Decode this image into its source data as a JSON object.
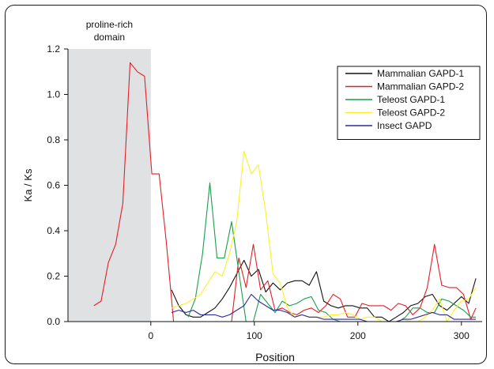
{
  "chart_data": {
    "type": "line",
    "title": "",
    "xlabel": "Position",
    "ylabel": "Ka / Ks",
    "xlim": [
      -80,
      320
    ],
    "ylim": [
      0,
      1.2
    ],
    "xticks": [
      0,
      100,
      200,
      300
    ],
    "yticks": [
      0.0,
      0.2,
      0.4,
      0.6,
      0.8,
      1.0,
      1.2
    ],
    "ytick_labels": [
      "0.0",
      "0.2",
      "0.4",
      "0.6",
      "0.8",
      "1.0",
      "1.2"
    ],
    "grid": false,
    "legend_position": "top-right",
    "annotations": [
      {
        "text": "proline-rich domain",
        "lines": [
          "proline-rich",
          "domain"
        ],
        "x_range": [
          -80,
          0
        ],
        "shade_color": "#e0e1e3"
      }
    ],
    "series": [
      {
        "name": "Mammalian GAPD-1",
        "color": "#111111",
        "x": [
          20,
          27,
          34,
          41,
          48,
          55,
          62,
          69,
          76,
          83,
          90,
          97,
          104,
          111,
          118,
          125,
          132,
          139,
          146,
          153,
          160,
          167,
          174,
          181,
          188,
          195,
          202,
          209,
          216,
          223,
          230,
          237,
          244,
          251,
          258,
          265,
          272,
          279,
          286,
          293,
          300,
          307,
          314
        ],
        "y": [
          0.14,
          0.07,
          0.03,
          0.02,
          0.02,
          0.04,
          0.06,
          0.1,
          0.15,
          0.21,
          0.27,
          0.2,
          0.23,
          0.13,
          0.17,
          0.14,
          0.17,
          0.18,
          0.18,
          0.16,
          0.22,
          0.09,
          0.07,
          0.06,
          0.07,
          0.07,
          0.06,
          0.06,
          0.02,
          0.02,
          0.0,
          0.02,
          0.04,
          0.07,
          0.08,
          0.11,
          0.12,
          0.07,
          0.05,
          0.08,
          0.11,
          0.08,
          0.19
        ]
      },
      {
        "name": "Mammalian GAPD-2",
        "color": "#e41e26",
        "x": [
          -55,
          -48,
          -41,
          -34,
          -27,
          -20,
          -13,
          -6,
          1,
          8,
          15,
          22,
          29,
          36,
          43,
          50,
          57,
          64,
          71,
          78,
          85,
          92,
          99,
          106,
          113,
          120,
          127,
          134,
          141,
          148,
          155,
          162,
          169,
          176,
          183,
          190,
          197,
          204,
          211,
          218,
          225,
          232,
          239,
          246,
          253,
          260,
          267,
          274,
          281,
          288,
          295,
          302,
          309,
          314
        ],
        "y": [
          0.07,
          0.09,
          0.26,
          0.34,
          0.52,
          1.14,
          1.1,
          1.08,
          0.65,
          0.65,
          0.35,
          0.0,
          0.0,
          0.0,
          0.0,
          0.0,
          0.0,
          0.0,
          0.0,
          0.0,
          0.28,
          0.15,
          0.34,
          0.14,
          0.18,
          0.05,
          0.06,
          0.04,
          0.03,
          0.05,
          0.06,
          0.04,
          0.07,
          0.12,
          0.1,
          0.02,
          0.02,
          0.08,
          0.07,
          0.07,
          0.07,
          0.05,
          0.08,
          0.07,
          0.03,
          0.06,
          0.15,
          0.34,
          0.16,
          0.15,
          0.15,
          0.12,
          0.01,
          0.06
        ]
      },
      {
        "name": "Teleost GAPD-1",
        "color": "#1a9e4b",
        "x": [
          36,
          43,
          50,
          57,
          64,
          71,
          78,
          85,
          92,
          99,
          106,
          113,
          120,
          127,
          134,
          141,
          148,
          155,
          162,
          169,
          176,
          183,
          190,
          197,
          204,
          211,
          218,
          225,
          232,
          239,
          246,
          253,
          260,
          267,
          274,
          281,
          288,
          295,
          302,
          309,
          314
        ],
        "y": [
          0.02,
          0.1,
          0.3,
          0.61,
          0.28,
          0.28,
          0.44,
          0.22,
          0.0,
          0.0,
          0.12,
          0.08,
          0.04,
          0.09,
          0.07,
          0.08,
          0.1,
          0.11,
          0.05,
          0.04,
          0.01,
          0.0,
          0.0,
          0.0,
          0.0,
          0.0,
          0.0,
          0.0,
          0.0,
          0.0,
          0.02,
          0.06,
          0.06,
          0.04,
          0.04,
          0.1,
          0.09,
          0.07,
          0.05,
          0.02,
          0.02
        ]
      },
      {
        "name": "Teleost GAPD-2",
        "color": "#ffee2a",
        "x": [
          20,
          27,
          34,
          41,
          48,
          55,
          62,
          69,
          76,
          83,
          90,
          97,
          104,
          111,
          118,
          125,
          132,
          139,
          146,
          153,
          160,
          167,
          174,
          181,
          188,
          195,
          202,
          209,
          216,
          223,
          230,
          237,
          244,
          251,
          258,
          265,
          272,
          279,
          286,
          293,
          300,
          307,
          314
        ],
        "y": [
          0.06,
          0.07,
          0.08,
          0.1,
          0.12,
          0.17,
          0.22,
          0.2,
          0.3,
          0.44,
          0.75,
          0.65,
          0.69,
          0.48,
          0.21,
          0.17,
          0.06,
          0.02,
          0.03,
          0.02,
          0.02,
          0.02,
          0.03,
          0.03,
          0.04,
          0.03,
          0.01,
          0.02,
          0.02,
          0.0,
          0.0,
          0.0,
          0.01,
          0.0,
          0.0,
          0.02,
          0.05,
          0.1,
          0.0,
          0.05,
          0.09,
          0.1,
          0.15
        ]
      },
      {
        "name": "Insect GAPD",
        "color": "#2b2b9a",
        "x": [
          20,
          27,
          34,
          41,
          48,
          55,
          62,
          69,
          76,
          83,
          90,
          97,
          104,
          111,
          118,
          125,
          132,
          139,
          146,
          153,
          160,
          167,
          174,
          181,
          188,
          195,
          202,
          209,
          216,
          223,
          230,
          237,
          244,
          251,
          258,
          265,
          272,
          279,
          286,
          293,
          300,
          307,
          314
        ],
        "y": [
          0.04,
          0.05,
          0.04,
          0.05,
          0.03,
          0.03,
          0.03,
          0.02,
          0.03,
          0.05,
          0.07,
          0.12,
          0.09,
          0.07,
          0.05,
          0.05,
          0.04,
          0.02,
          0.03,
          0.02,
          0.02,
          0.01,
          0.01,
          0.01,
          0.01,
          0.01,
          0.01,
          0.0,
          0.0,
          0.0,
          0.0,
          0.0,
          0.01,
          0.01,
          0.02,
          0.03,
          0.04,
          0.03,
          0.03,
          0.01,
          0.01,
          0.01,
          0.01
        ]
      }
    ]
  }
}
